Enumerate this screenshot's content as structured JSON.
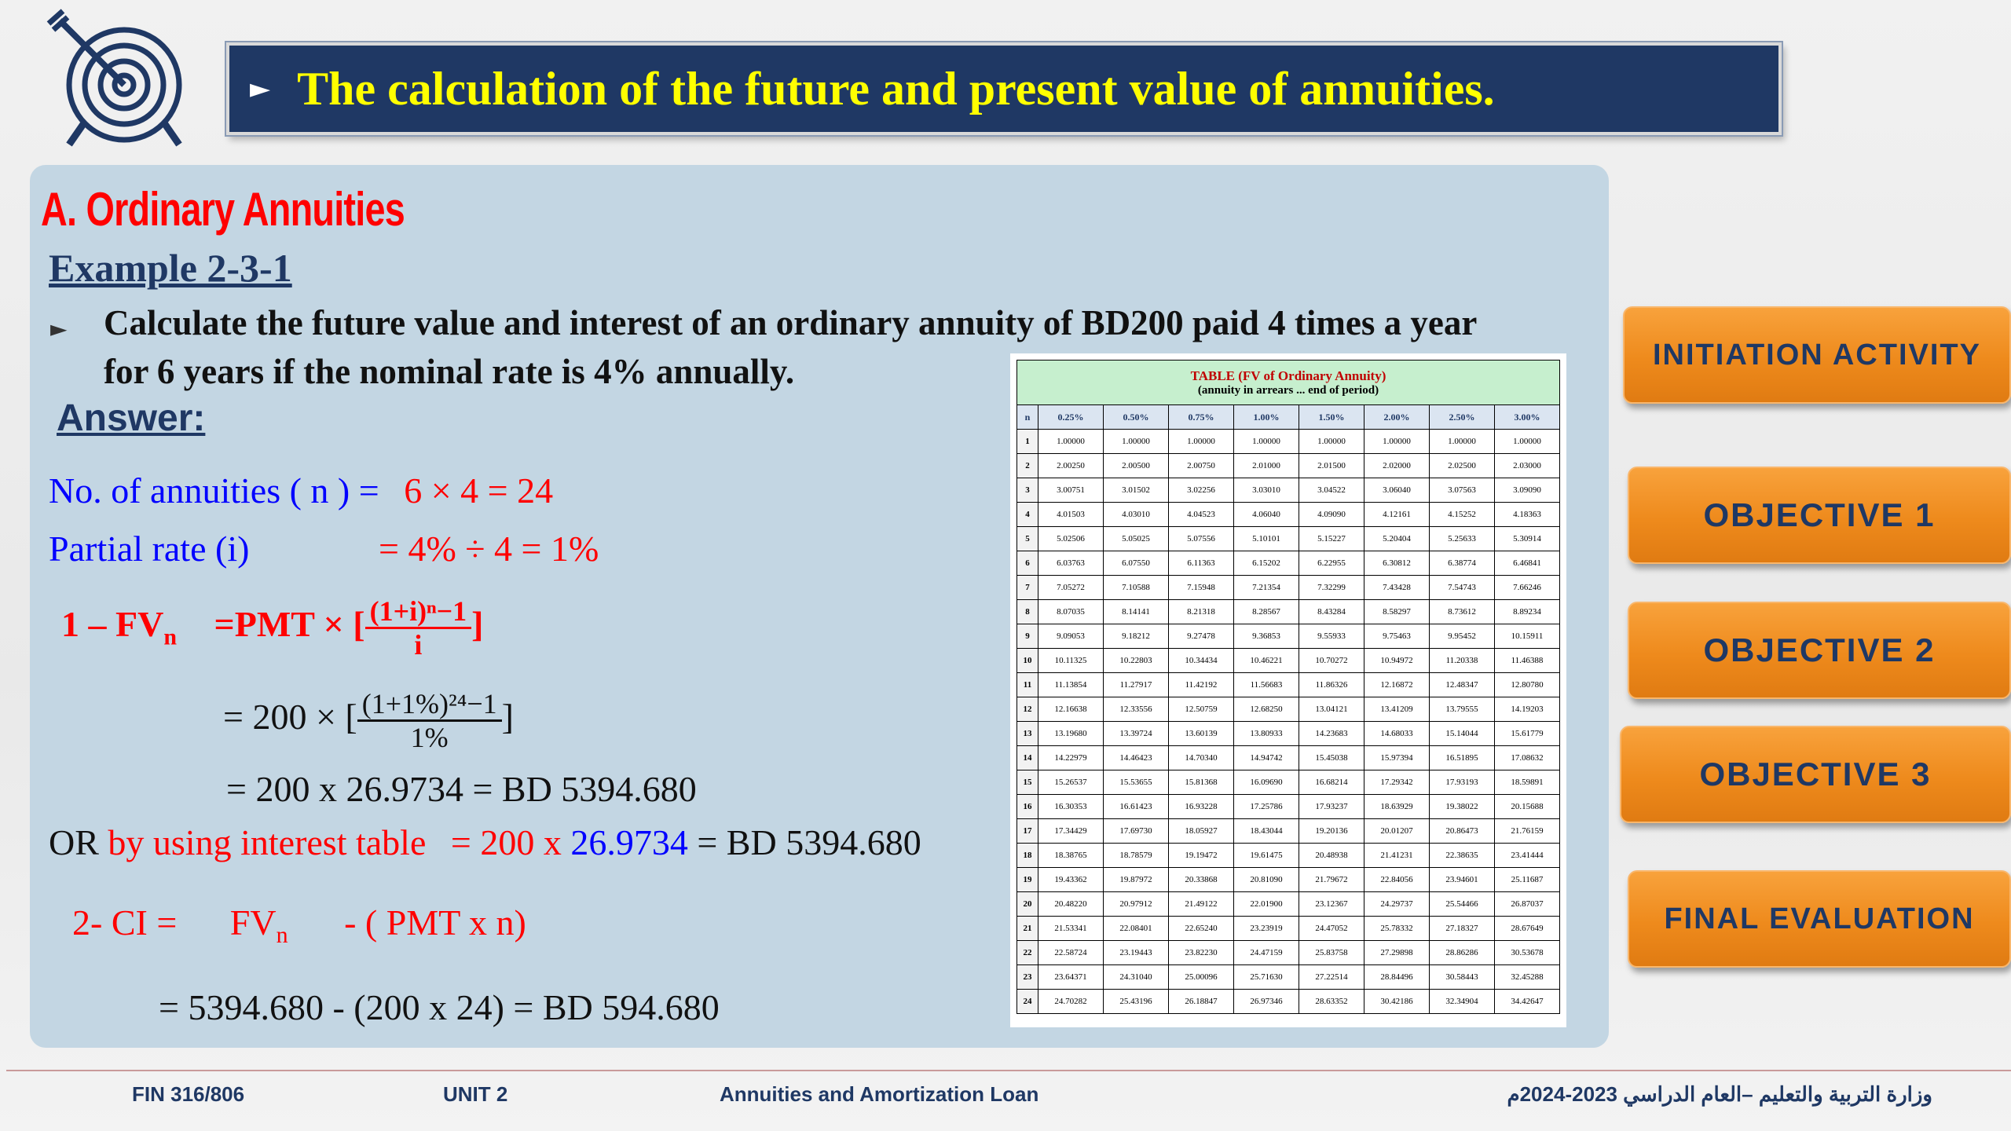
{
  "header": {
    "title": "The calculation of the future and present value of annuities."
  },
  "section": {
    "heading": "A.   Ordinary Annuities",
    "example_title": "Example 2-3-1",
    "problem_line1": "Calculate the future value and interest of an ordinary annuity of BD200 paid 4 times a year",
    "problem_line2": "for 6 years if the nominal rate is 4% annually.",
    "answer_label": "Answer:"
  },
  "solution": {
    "annuities_label": "No. of annuities ( n ) =",
    "annuities_value": "6  × 4 = 24",
    "rate_label": "Partial rate (i)",
    "rate_value": "= 4% ÷ 4 = 1%",
    "fv_step_label": "1 –  FV",
    "fv_sub": "n",
    "fv_formula_prefix": "=PMT × [",
    "fv_formula_num": "(1+i)ⁿ−1",
    "fv_formula_den": "i",
    "fv_formula_suffix": "]",
    "sub_prefix": "= 200 × [",
    "sub_num": "(1+1%)²⁴−1",
    "sub_den": "1%",
    "sub_suffix": "]",
    "result_line": "= 200 x 26.9734     = BD 5394.680",
    "or_label": "OR",
    "or_method": "by using interest table",
    "or_eq": "= 200 x",
    "or_factor": "26.9734",
    "or_result": "= BD 5394.680",
    "ci_label": "2- CI =",
    "ci_fv": "FV",
    "ci_sub": "n",
    "ci_rest": "- (  PMT x n)",
    "ci_result": "= 5394.680 -   (200     x 24) = BD 594.680"
  },
  "fv_table": {
    "title": "TABLE (FV of Ordinary Annuity)",
    "subtitle": "(annuity in arrears ... end of period)",
    "n_header": "n",
    "rates": [
      "0.25%",
      "0.50%",
      "0.75%",
      "1.00%",
      "1.50%",
      "2.00%",
      "2.50%",
      "3.00%"
    ],
    "rows": [
      [
        "1",
        "1.00000",
        "1.00000",
        "1.00000",
        "1.00000",
        "1.00000",
        "1.00000",
        "1.00000",
        "1.00000"
      ],
      [
        "2",
        "2.00250",
        "2.00500",
        "2.00750",
        "2.01000",
        "2.01500",
        "2.02000",
        "2.02500",
        "2.03000"
      ],
      [
        "3",
        "3.00751",
        "3.01502",
        "3.02256",
        "3.03010",
        "3.04522",
        "3.06040",
        "3.07563",
        "3.09090"
      ],
      [
        "4",
        "4.01503",
        "4.03010",
        "4.04523",
        "4.06040",
        "4.09090",
        "4.12161",
        "4.15252",
        "4.18363"
      ],
      [
        "5",
        "5.02506",
        "5.05025",
        "5.07556",
        "5.10101",
        "5.15227",
        "5.20404",
        "5.25633",
        "5.30914"
      ],
      [
        "6",
        "6.03763",
        "6.07550",
        "6.11363",
        "6.15202",
        "6.22955",
        "6.30812",
        "6.38774",
        "6.46841"
      ],
      [
        "7",
        "7.05272",
        "7.10588",
        "7.15948",
        "7.21354",
        "7.32299",
        "7.43428",
        "7.54743",
        "7.66246"
      ],
      [
        "8",
        "8.07035",
        "8.14141",
        "8.21318",
        "8.28567",
        "8.43284",
        "8.58297",
        "8.73612",
        "8.89234"
      ],
      [
        "9",
        "9.09053",
        "9.18212",
        "9.27478",
        "9.36853",
        "9.55933",
        "9.75463",
        "9.95452",
        "10.15911"
      ],
      [
        "10",
        "10.11325",
        "10.22803",
        "10.34434",
        "10.46221",
        "10.70272",
        "10.94972",
        "11.20338",
        "11.46388"
      ],
      [
        "11",
        "11.13854",
        "11.27917",
        "11.42192",
        "11.56683",
        "11.86326",
        "12.16872",
        "12.48347",
        "12.80780"
      ],
      [
        "12",
        "12.16638",
        "12.33556",
        "12.50759",
        "12.68250",
        "13.04121",
        "13.41209",
        "13.79555",
        "14.19203"
      ],
      [
        "13",
        "13.19680",
        "13.39724",
        "13.60139",
        "13.80933",
        "14.23683",
        "14.68033",
        "15.14044",
        "15.61779"
      ],
      [
        "14",
        "14.22979",
        "14.46423",
        "14.70340",
        "14.94742",
        "15.45038",
        "15.97394",
        "16.51895",
        "17.08632"
      ],
      [
        "15",
        "15.26537",
        "15.53655",
        "15.81368",
        "16.09690",
        "16.68214",
        "17.29342",
        "17.93193",
        "18.59891"
      ],
      [
        "16",
        "16.30353",
        "16.61423",
        "16.93228",
        "17.25786",
        "17.93237",
        "18.63929",
        "19.38022",
        "20.15688"
      ],
      [
        "17",
        "17.34429",
        "17.69730",
        "18.05927",
        "18.43044",
        "19.20136",
        "20.01207",
        "20.86473",
        "21.76159"
      ],
      [
        "18",
        "18.38765",
        "18.78579",
        "19.19472",
        "19.61475",
        "20.48938",
        "21.41231",
        "22.38635",
        "23.41444"
      ],
      [
        "19",
        "19.43362",
        "19.87972",
        "20.33868",
        "20.81090",
        "21.79672",
        "22.84056",
        "23.94601",
        "25.11687"
      ],
      [
        "20",
        "20.48220",
        "20.97912",
        "21.49122",
        "22.01900",
        "23.12367",
        "24.29737",
        "25.54466",
        "26.87037"
      ],
      [
        "21",
        "21.53341",
        "22.08401",
        "22.65240",
        "23.23919",
        "24.47052",
        "25.78332",
        "27.18327",
        "28.67649"
      ],
      [
        "22",
        "22.58724",
        "23.19443",
        "23.82230",
        "24.47159",
        "25.83758",
        "27.29898",
        "28.86286",
        "30.53678"
      ],
      [
        "23",
        "23.64371",
        "24.31040",
        "25.00096",
        "25.71630",
        "27.22514",
        "28.84496",
        "30.58443",
        "32.45288"
      ],
      [
        "24",
        "24.70282",
        "25.43196",
        "26.18847",
        "26.97346",
        "28.63352",
        "30.42186",
        "32.34904",
        "34.42647"
      ]
    ]
  },
  "nav": {
    "initiation": "INITIATION ACTIVITY",
    "objective1": "OBJECTIVE 1",
    "objective2": "OBJECTIVE 2",
    "objective3": "OBJECTIVE 3",
    "final": "FINAL EVALUATION"
  },
  "footer": {
    "course": "FIN 316/806",
    "unit": "UNIT 2",
    "topic": "Annuities and Amortization Loan",
    "ministry": "وزارة التربية والتعليم –العام الدراسي 2023-2024م"
  },
  "colors": {
    "title_bar": "#1f3864",
    "title_text": "#ffff00",
    "panel": "#c3d6e3",
    "button": "#f0901f",
    "red": "#ff0000",
    "blue": "#0000ff"
  }
}
